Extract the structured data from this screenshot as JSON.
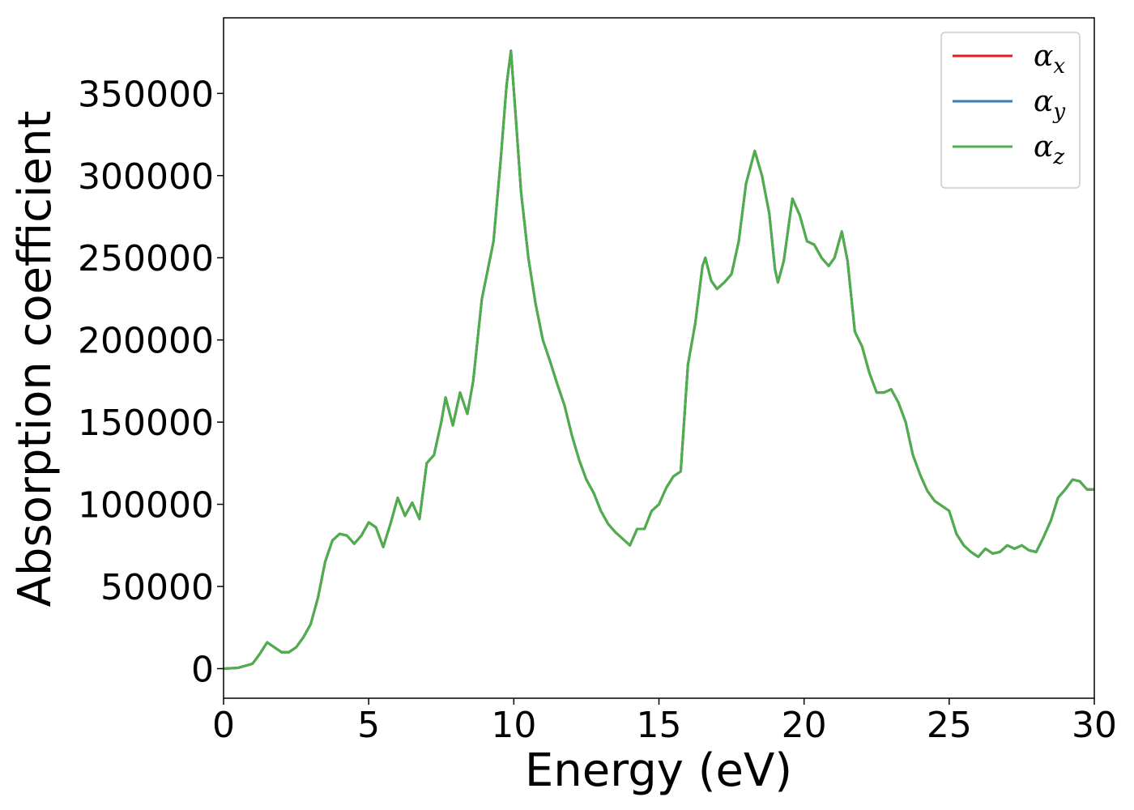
{
  "chart_data": {
    "type": "line",
    "title": "",
    "xlabel": "Energy (eV)",
    "ylabel": "Absorption coefficient",
    "xlim": [
      0,
      30
    ],
    "ylim": [
      -18000,
      396000
    ],
    "xticks": [
      0,
      5,
      10,
      15,
      20,
      25,
      30
    ],
    "xtick_labels": [
      "0",
      "5",
      "10",
      "15",
      "20",
      "25",
      "30"
    ],
    "yticks": [
      0,
      50000,
      100000,
      150000,
      200000,
      250000,
      300000,
      350000
    ],
    "ytick_labels": [
      "0",
      "50000",
      "100000",
      "150000",
      "200000",
      "250000",
      "300000",
      "350000"
    ],
    "grid": false,
    "legend": "top-right",
    "series": [
      {
        "name": "α",
        "subscript": "x",
        "color": "#e41a1c",
        "x": [
          0,
          0.5,
          1,
          1.25,
          1.5,
          1.75,
          2,
          2.25,
          2.5,
          2.75,
          3,
          3.25,
          3.5,
          3.75,
          4,
          4.25,
          4.5,
          4.75,
          5,
          5.25,
          5.5,
          5.75,
          6,
          6.25,
          6.5,
          6.75,
          7,
          7.25,
          7.5,
          7.65,
          7.9,
          8.15,
          8.4,
          8.6,
          8.9,
          9.3,
          9.55,
          9.75,
          9.9,
          10.05,
          10.25,
          10.5,
          10.75,
          11,
          11.25,
          11.5,
          11.75,
          12,
          12.25,
          12.5,
          12.75,
          13,
          13.25,
          13.5,
          13.75,
          14,
          14.25,
          14.5,
          14.75,
          15,
          15.25,
          15.5,
          15.75,
          16,
          16.25,
          16.5,
          16.6,
          16.8,
          17,
          17.25,
          17.5,
          17.75,
          18,
          18.3,
          18.55,
          18.8,
          19,
          19.1,
          19.3,
          19.6,
          19.85,
          20.1,
          20.35,
          20.6,
          20.85,
          21.05,
          21.3,
          21.5,
          21.75,
          22,
          22.25,
          22.5,
          22.75,
          23,
          23.25,
          23.5,
          23.75,
          24,
          24.25,
          24.5,
          24.75,
          25,
          25.25,
          25.5,
          25.75,
          26,
          26.25,
          26.5,
          26.75,
          27,
          27.25,
          27.5,
          27.75,
          28,
          28.25,
          28.5,
          28.75,
          29,
          29.25,
          29.5,
          29.75,
          30
        ],
        "y": [
          0,
          500,
          3000,
          9000,
          16000,
          13000,
          10000,
          10000,
          13000,
          19000,
          27000,
          43000,
          65000,
          78000,
          82000,
          81000,
          76000,
          81000,
          89000,
          86000,
          74000,
          88000,
          104000,
          93000,
          101000,
          91000,
          125000,
          130000,
          150000,
          165000,
          148000,
          168000,
          155000,
          175000,
          225000,
          260000,
          310000,
          355000,
          376000,
          340000,
          290000,
          250000,
          222000,
          200000,
          187000,
          173000,
          160000,
          142000,
          127000,
          115000,
          107000,
          96000,
          88000,
          83000,
          79000,
          75000,
          85000,
          85000,
          96000,
          100000,
          110000,
          117000,
          120000,
          185000,
          210000,
          245000,
          250000,
          236000,
          231000,
          235000,
          240000,
          260000,
          295000,
          315000,
          300000,
          277000,
          243000,
          235000,
          248000,
          286000,
          276000,
          260000,
          258000,
          250000,
          245000,
          250000,
          266000,
          248000,
          205000,
          196000,
          180000,
          168000,
          168000,
          170000,
          162000,
          150000,
          130000,
          118000,
          108000,
          102000,
          99000,
          96000,
          82000,
          75000,
          71000,
          68000,
          73000,
          70000,
          71000,
          75000,
          73000,
          75000,
          72000,
          71000,
          80000,
          90000,
          104000,
          109000,
          115000,
          114000,
          109000,
          109000
        ]
      },
      {
        "name": "α",
        "subscript": "y",
        "color": "#377eb8",
        "x": [
          0,
          0.5,
          1,
          1.25,
          1.5,
          1.75,
          2,
          2.25,
          2.5,
          2.75,
          3,
          3.25,
          3.5,
          3.75,
          4,
          4.25,
          4.5,
          4.75,
          5,
          5.25,
          5.5,
          5.75,
          6,
          6.25,
          6.5,
          6.75,
          7,
          7.25,
          7.5,
          7.65,
          7.9,
          8.15,
          8.4,
          8.6,
          8.9,
          9.3,
          9.55,
          9.75,
          9.9,
          10.05,
          10.25,
          10.5,
          10.75,
          11,
          11.25,
          11.5,
          11.75,
          12,
          12.25,
          12.5,
          12.75,
          13,
          13.25,
          13.5,
          13.75,
          14,
          14.25,
          14.5,
          14.75,
          15,
          15.25,
          15.5,
          15.75,
          16,
          16.25,
          16.5,
          16.6,
          16.8,
          17,
          17.25,
          17.5,
          17.75,
          18,
          18.3,
          18.55,
          18.8,
          19,
          19.1,
          19.3,
          19.6,
          19.85,
          20.1,
          20.35,
          20.6,
          20.85,
          21.05,
          21.3,
          21.5,
          21.75,
          22,
          22.25,
          22.5,
          22.75,
          23,
          23.25,
          23.5,
          23.75,
          24,
          24.25,
          24.5,
          24.75,
          25,
          25.25,
          25.5,
          25.75,
          26,
          26.25,
          26.5,
          26.75,
          27,
          27.25,
          27.5,
          27.75,
          28,
          28.25,
          28.5,
          28.75,
          29,
          29.25,
          29.5,
          29.75,
          30
        ],
        "y": [
          0,
          500,
          3000,
          9000,
          16000,
          13000,
          10000,
          10000,
          13000,
          19000,
          27000,
          43000,
          65000,
          78000,
          82000,
          81000,
          76000,
          81000,
          89000,
          86000,
          74000,
          88000,
          104000,
          93000,
          101000,
          91000,
          125000,
          130000,
          150000,
          165000,
          148000,
          168000,
          155000,
          175000,
          225000,
          260000,
          310000,
          355000,
          376000,
          340000,
          290000,
          250000,
          222000,
          200000,
          187000,
          173000,
          160000,
          142000,
          127000,
          115000,
          107000,
          96000,
          88000,
          83000,
          79000,
          75000,
          85000,
          85000,
          96000,
          100000,
          110000,
          117000,
          120000,
          185000,
          210000,
          245000,
          250000,
          236000,
          231000,
          235000,
          240000,
          260000,
          295000,
          315000,
          300000,
          277000,
          243000,
          235000,
          248000,
          286000,
          276000,
          260000,
          258000,
          250000,
          245000,
          250000,
          266000,
          248000,
          205000,
          196000,
          180000,
          168000,
          168000,
          170000,
          162000,
          150000,
          130000,
          118000,
          108000,
          102000,
          99000,
          96000,
          82000,
          75000,
          71000,
          68000,
          73000,
          70000,
          71000,
          75000,
          73000,
          75000,
          72000,
          71000,
          80000,
          90000,
          104000,
          109000,
          115000,
          114000,
          109000,
          109000
        ]
      },
      {
        "name": "α",
        "subscript": "z",
        "color": "#4daf4a",
        "x": [
          0,
          0.5,
          1,
          1.25,
          1.5,
          1.75,
          2,
          2.25,
          2.5,
          2.75,
          3,
          3.25,
          3.5,
          3.75,
          4,
          4.25,
          4.5,
          4.75,
          5,
          5.25,
          5.5,
          5.75,
          6,
          6.25,
          6.5,
          6.75,
          7,
          7.25,
          7.5,
          7.65,
          7.9,
          8.15,
          8.4,
          8.6,
          8.9,
          9.3,
          9.55,
          9.75,
          9.9,
          10.05,
          10.25,
          10.5,
          10.75,
          11,
          11.25,
          11.5,
          11.75,
          12,
          12.25,
          12.5,
          12.75,
          13,
          13.25,
          13.5,
          13.75,
          14,
          14.25,
          14.5,
          14.75,
          15,
          15.25,
          15.5,
          15.75,
          16,
          16.25,
          16.5,
          16.6,
          16.8,
          17,
          17.25,
          17.5,
          17.75,
          18,
          18.3,
          18.55,
          18.8,
          19,
          19.1,
          19.3,
          19.6,
          19.85,
          20.1,
          20.35,
          20.6,
          20.85,
          21.05,
          21.3,
          21.5,
          21.75,
          22,
          22.25,
          22.5,
          22.75,
          23,
          23.25,
          23.5,
          23.75,
          24,
          24.25,
          24.5,
          24.75,
          25,
          25.25,
          25.5,
          25.75,
          26,
          26.25,
          26.5,
          26.75,
          27,
          27.25,
          27.5,
          27.75,
          28,
          28.25,
          28.5,
          28.75,
          29,
          29.25,
          29.5,
          29.75,
          30
        ],
        "y": [
          0,
          500,
          3000,
          9000,
          16000,
          13000,
          10000,
          10000,
          13000,
          19000,
          27000,
          43000,
          65000,
          78000,
          82000,
          81000,
          76000,
          81000,
          89000,
          86000,
          74000,
          88000,
          104000,
          93000,
          101000,
          91000,
          125000,
          130000,
          150000,
          165000,
          148000,
          168000,
          155000,
          175000,
          225000,
          260000,
          310000,
          355000,
          376000,
          340000,
          290000,
          250000,
          222000,
          200000,
          187000,
          173000,
          160000,
          142000,
          127000,
          115000,
          107000,
          96000,
          88000,
          83000,
          79000,
          75000,
          85000,
          85000,
          96000,
          100000,
          110000,
          117000,
          120000,
          185000,
          210000,
          245000,
          250000,
          236000,
          231000,
          235000,
          240000,
          260000,
          295000,
          315000,
          300000,
          277000,
          243000,
          235000,
          248000,
          286000,
          276000,
          260000,
          258000,
          250000,
          245000,
          250000,
          266000,
          248000,
          205000,
          196000,
          180000,
          168000,
          168000,
          170000,
          162000,
          150000,
          130000,
          118000,
          108000,
          102000,
          99000,
          96000,
          82000,
          75000,
          71000,
          68000,
          73000,
          70000,
          71000,
          75000,
          73000,
          75000,
          72000,
          71000,
          80000,
          90000,
          104000,
          109000,
          115000,
          114000,
          109000,
          109000
        ]
      }
    ]
  }
}
